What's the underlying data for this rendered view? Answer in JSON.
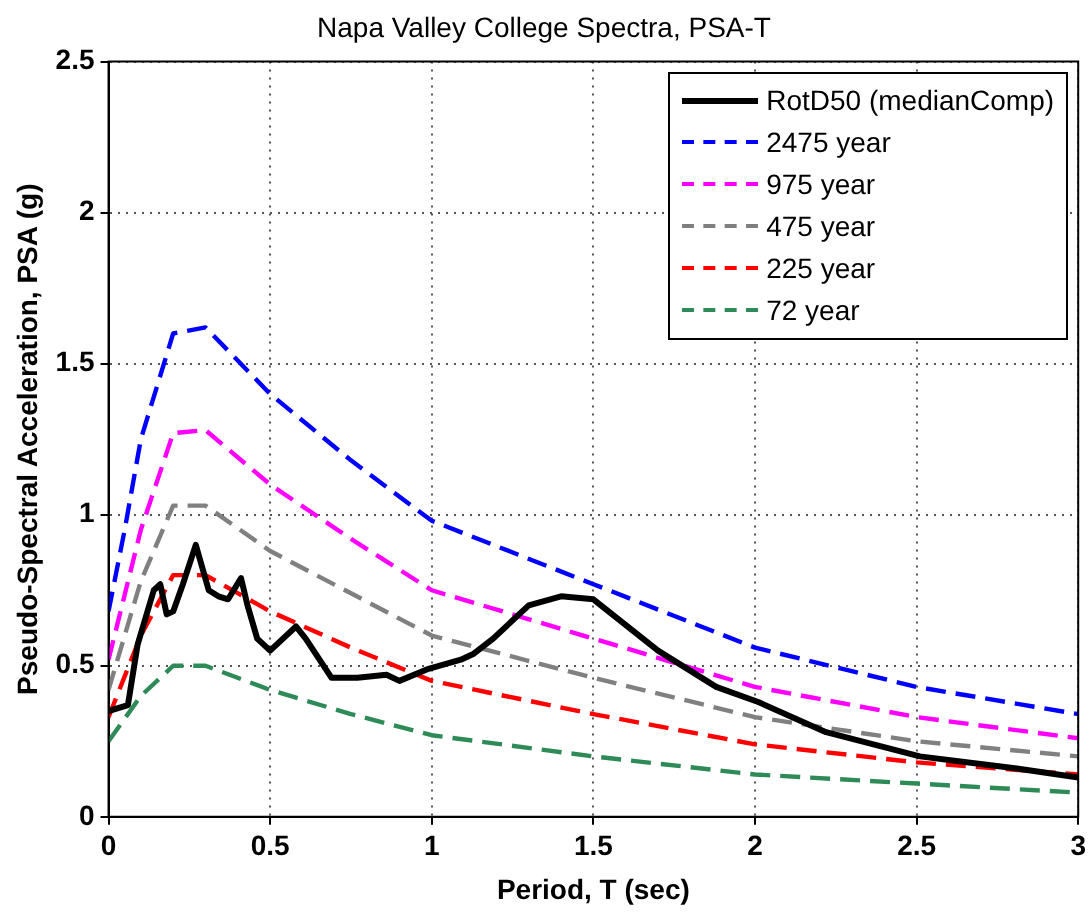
{
  "chart_data": {
    "type": "line",
    "title": "Napa Valley College Spectra, PSA-T",
    "xlabel": "Period, T (sec)",
    "ylabel": "Pseudo-Spectral Acceleration, PSA (g)",
    "xlim": [
      0,
      3
    ],
    "xticks": [
      0,
      0.5,
      1,
      1.5,
      2,
      2.5,
      3
    ],
    "ylim": [
      0,
      2.5
    ],
    "yticks": [
      0,
      0.5,
      1,
      1.5,
      2,
      2.5
    ],
    "grid": true,
    "legend": "top right",
    "marker": "none",
    "series": [
      {
        "name": "RotD50 (medianComp)",
        "color": "#000000",
        "line_style": "solid",
        "x": [
          0,
          0.06,
          0.09,
          0.14,
          0.16,
          0.18,
          0.2,
          0.23,
          0.27,
          0.31,
          0.34,
          0.37,
          0.41,
          0.43,
          0.46,
          0.5,
          0.58,
          0.61,
          0.69,
          0.77,
          0.86,
          0.9,
          0.99,
          1.09,
          1.13,
          1.19,
          1.3,
          1.4,
          1.5,
          1.7,
          1.88,
          2.01,
          2.22,
          2.51,
          2.81,
          3
        ],
        "values": [
          0.35,
          0.37,
          0.57,
          0.75,
          0.77,
          0.67,
          0.68,
          0.77,
          0.9,
          0.75,
          0.73,
          0.72,
          0.79,
          0.7,
          0.59,
          0.55,
          0.63,
          0.59,
          0.46,
          0.46,
          0.47,
          0.45,
          0.49,
          0.52,
          0.54,
          0.59,
          0.7,
          0.73,
          0.72,
          0.55,
          0.43,
          0.38,
          0.28,
          0.2,
          0.16,
          0.13
        ]
      },
      {
        "name": "2475 year",
        "color": "#0000ff",
        "line_style": "dashed",
        "x": [
          0,
          0.05,
          0.1,
          0.2,
          0.3,
          0.5,
          0.75,
          1,
          1.5,
          2,
          2.5,
          3
        ],
        "values": [
          0.68,
          0.95,
          1.25,
          1.6,
          1.62,
          1.4,
          1.18,
          0.98,
          0.77,
          0.56,
          0.43,
          0.34
        ]
      },
      {
        "name": "975 year",
        "color": "#ff00ff",
        "line_style": "dashed",
        "x": [
          0,
          0.1,
          0.2,
          0.3,
          0.5,
          0.75,
          1,
          1.5,
          2,
          2.5,
          3
        ],
        "values": [
          0.52,
          0.95,
          1.27,
          1.28,
          1.1,
          0.92,
          0.75,
          0.59,
          0.43,
          0.33,
          0.26
        ]
      },
      {
        "name": "475 year",
        "color": "#808080",
        "line_style": "dashed",
        "x": [
          0,
          0.1,
          0.2,
          0.3,
          0.5,
          0.75,
          1,
          1.5,
          2,
          2.5,
          3
        ],
        "values": [
          0.42,
          0.78,
          1.03,
          1.03,
          0.88,
          0.74,
          0.6,
          0.46,
          0.33,
          0.25,
          0.2
        ]
      },
      {
        "name": "225 year",
        "color": "#ff0000",
        "line_style": "dashed",
        "x": [
          0,
          0.1,
          0.2,
          0.3,
          0.5,
          0.75,
          1,
          1.5,
          2,
          2.5,
          3
        ],
        "values": [
          0.33,
          0.6,
          0.8,
          0.8,
          0.68,
          0.56,
          0.45,
          0.34,
          0.24,
          0.18,
          0.14
        ]
      },
      {
        "name": "72 year",
        "color": "#2e8b57",
        "line_style": "dashed",
        "x": [
          0,
          0.1,
          0.2,
          0.3,
          0.5,
          0.75,
          1,
          1.5,
          2,
          2.5,
          3
        ],
        "values": [
          0.25,
          0.4,
          0.5,
          0.5,
          0.42,
          0.34,
          0.27,
          0.2,
          0.14,
          0.11,
          0.08
        ]
      }
    ]
  }
}
